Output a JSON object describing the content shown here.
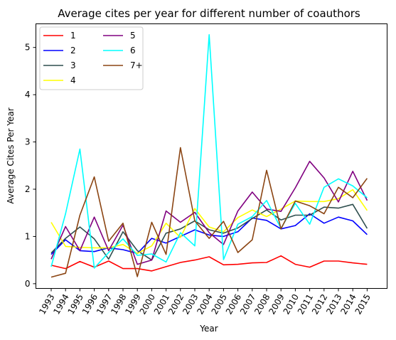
{
  "chart_data": {
    "type": "line",
    "title": "Average cites per year for different number of coauthors",
    "xlabel": "Year",
    "ylabel": "Average Cites Per Year",
    "x": [
      "1993",
      "1994",
      "1995",
      "1996",
      "1997",
      "1998",
      "1999",
      "2000",
      "2001",
      "2002",
      "2003",
      "2004",
      "2005",
      "2006",
      "2007",
      "2008",
      "2009",
      "2010",
      "2011",
      "2012",
      "2013",
      "2014",
      "2015"
    ],
    "ylim": [
      -0.1,
      5.5
    ],
    "yticks": [
      0,
      1,
      2,
      3,
      4,
      5
    ],
    "grid": false,
    "legend": {
      "placement": "top-left",
      "columns": 2
    },
    "series": [
      {
        "name": "1",
        "color": "#ff0000",
        "values": [
          0.39,
          0.32,
          0.47,
          0.35,
          0.48,
          0.32,
          0.32,
          0.27,
          0.36,
          0.45,
          0.5,
          0.57,
          0.4,
          0.41,
          0.44,
          0.45,
          0.59,
          0.41,
          0.35,
          0.48,
          0.48,
          0.44,
          0.41
        ]
      },
      {
        "name": "2",
        "color": "#0000ff",
        "values": [
          0.62,
          0.93,
          0.7,
          0.68,
          0.76,
          0.72,
          0.64,
          0.96,
          0.86,
          1.0,
          1.14,
          1.03,
          1.0,
          1.1,
          1.39,
          1.34,
          1.16,
          1.23,
          1.48,
          1.28,
          1.41,
          1.33,
          1.04
        ]
      },
      {
        "name": "3",
        "color": "#2f4f4f",
        "values": [
          0.65,
          0.96,
          1.2,
          0.95,
          0.52,
          1.1,
          0.7,
          0.5,
          1.07,
          1.16,
          1.33,
          1.14,
          1.07,
          1.18,
          1.38,
          1.56,
          1.35,
          1.45,
          1.45,
          1.62,
          1.6,
          1.68,
          1.17
        ]
      },
      {
        "name": "4",
        "color": "#ffff00",
        "values": [
          1.3,
          0.79,
          0.77,
          0.76,
          0.76,
          0.83,
          0.64,
          0.8,
          1.28,
          0.98,
          1.59,
          1.2,
          1.1,
          1.4,
          1.56,
          1.42,
          1.58,
          1.75,
          1.74,
          1.74,
          1.8,
          1.99,
          1.55
        ]
      },
      {
        "name": "5",
        "color": "#800080",
        "values": [
          0.52,
          1.21,
          0.7,
          1.41,
          0.7,
          1.24,
          0.41,
          0.5,
          1.54,
          1.3,
          1.51,
          1.08,
          0.83,
          1.54,
          1.94,
          1.58,
          1.53,
          2.03,
          2.59,
          2.24,
          1.73,
          2.38,
          1.76
        ]
      },
      {
        "name": "6",
        "color": "#00ffff",
        "values": [
          0.36,
          1.48,
          2.85,
          0.33,
          0.66,
          0.95,
          0.6,
          0.63,
          0.46,
          1.08,
          0.8,
          5.27,
          0.51,
          1.26,
          1.42,
          1.76,
          1.17,
          1.7,
          1.26,
          2.04,
          2.22,
          2.07,
          1.82
        ]
      },
      {
        "name": "7+",
        "color": "#8b4513",
        "values": [
          0.14,
          0.22,
          1.45,
          2.26,
          0.9,
          1.28,
          0.15,
          1.3,
          0.62,
          2.88,
          1.33,
          0.96,
          1.32,
          0.66,
          0.93,
          2.4,
          1.16,
          1.75,
          1.65,
          1.48,
          2.04,
          1.82,
          2.23
        ]
      }
    ]
  }
}
